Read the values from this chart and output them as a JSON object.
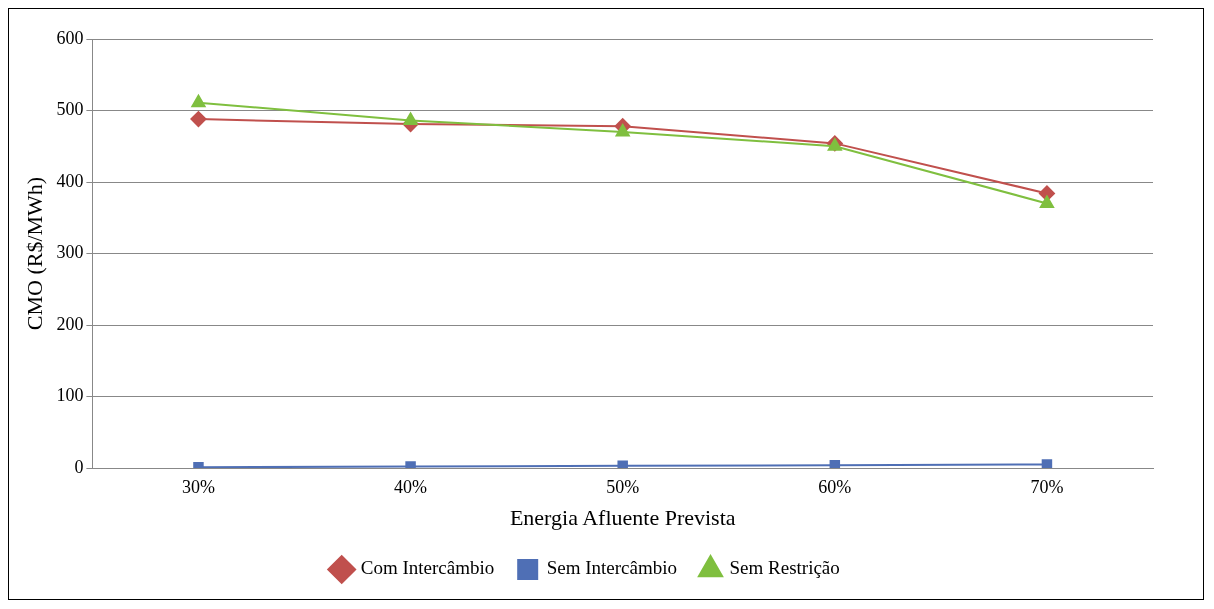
{
  "chart_data": {
    "type": "line",
    "xlabel": "Energia Afluente Prevista",
    "ylabel": "CMO (R$/MWh)",
    "categories": [
      "30%",
      "40%",
      "50%",
      "60%",
      "70%"
    ],
    "series": [
      {
        "name": "Com Intercâmbio",
        "color": "#c0504d",
        "marker": "diamond",
        "values": [
          488,
          481,
          478,
          454,
          384
        ]
      },
      {
        "name": "Sem Intercâmbio",
        "color": "#4f6fb5",
        "marker": "square",
        "values": [
          1,
          2,
          3,
          4,
          5
        ]
      },
      {
        "name": "Sem Restrição",
        "color": "#7fbf3f",
        "marker": "triangle",
        "values": [
          511,
          486,
          470,
          450,
          370
        ]
      }
    ],
    "ylim": [
      0,
      600
    ],
    "yticks": [
      0,
      100,
      200,
      300,
      400,
      500,
      600
    ],
    "grid": "y",
    "legend": "bottom"
  }
}
